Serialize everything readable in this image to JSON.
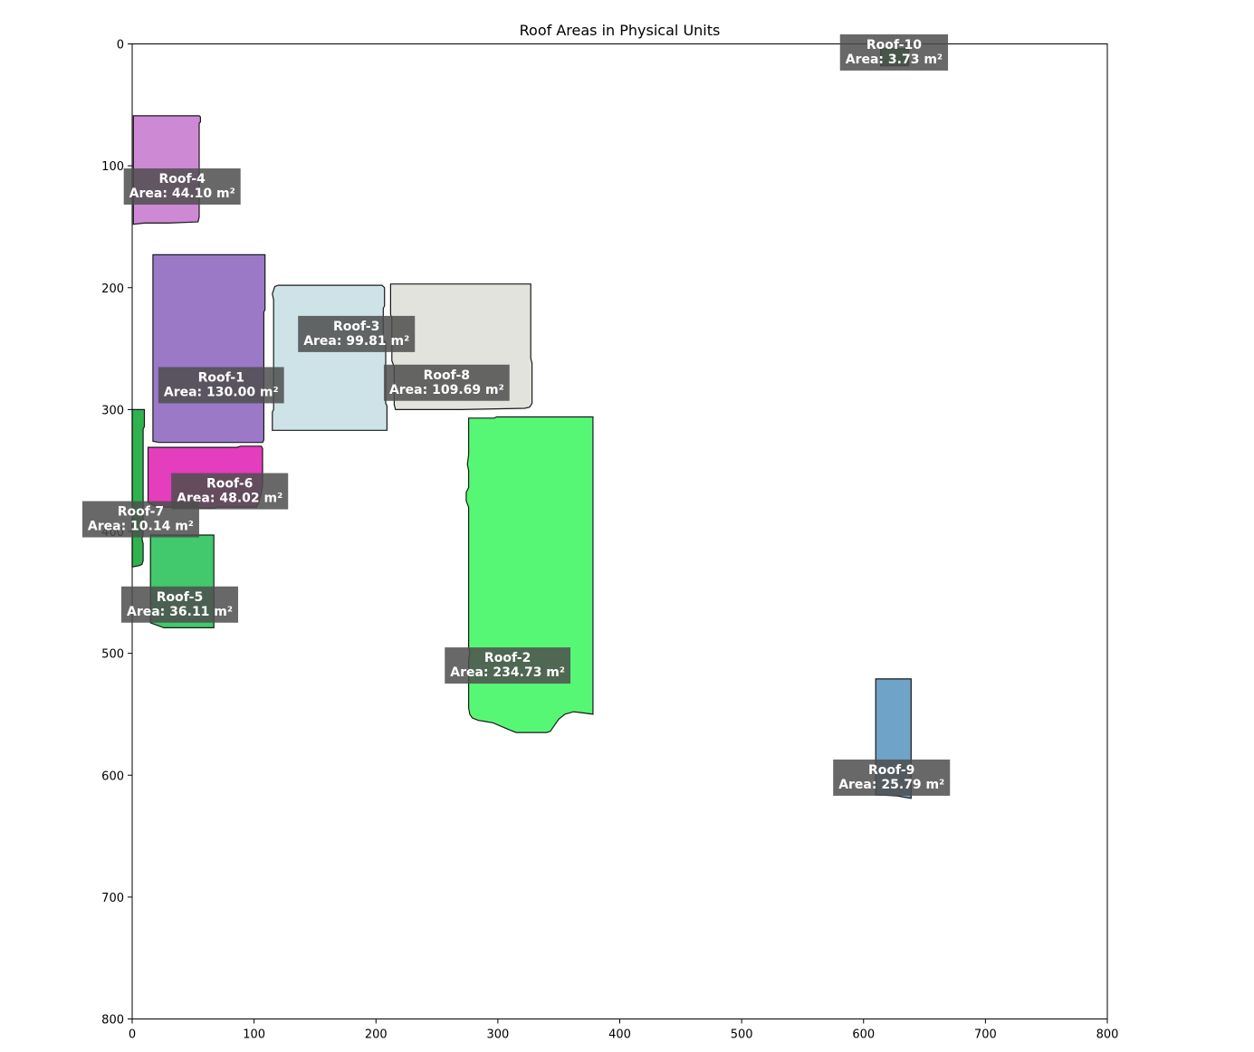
{
  "chart_data": {
    "type": "scatter",
    "title": "Roof Areas in Physical Units",
    "xlabel": "",
    "ylabel": "",
    "xlim": [
      0,
      800
    ],
    "ylim": [
      800,
      0
    ],
    "y_inverted": true,
    "grid": false,
    "x_ticks": [
      0,
      100,
      200,
      300,
      400,
      500,
      600,
      700,
      800
    ],
    "y_ticks": [
      0,
      100,
      200,
      300,
      400,
      500,
      600,
      700,
      800
    ],
    "label_box_color": "#4d4d4d",
    "roofs": [
      {
        "name": "Roof-1",
        "area_text": "Area: 130.00 m²",
        "color": "#9B79C7",
        "label_at": [
          73,
          280
        ],
        "polygon": [
          [
            17,
            173
          ],
          [
            109,
            173
          ],
          [
            109,
            218
          ],
          [
            108,
            220
          ],
          [
            108,
            325
          ],
          [
            107,
            327
          ],
          [
            22,
            327
          ],
          [
            17,
            326
          ]
        ]
      },
      {
        "name": "Roof-2",
        "area_text": "Area: 234.73 m²",
        "color": "#57F776",
        "label_at": [
          308,
          510
        ],
        "polygon": [
          [
            276,
            307
          ],
          [
            297,
            307
          ],
          [
            299,
            306
          ],
          [
            378,
            306
          ],
          [
            378,
            550
          ],
          [
            371,
            549
          ],
          [
            362,
            548
          ],
          [
            355,
            550
          ],
          [
            350,
            554
          ],
          [
            343,
            564
          ],
          [
            340,
            565
          ],
          [
            315,
            565
          ],
          [
            310,
            563
          ],
          [
            303,
            560
          ],
          [
            296,
            557
          ],
          [
            290,
            556
          ],
          [
            284,
            555
          ],
          [
            279,
            553
          ],
          [
            277,
            550
          ],
          [
            276,
            545
          ],
          [
            276,
            505
          ],
          [
            277,
            500
          ],
          [
            276,
            495
          ],
          [
            276,
            380
          ],
          [
            274,
            375
          ],
          [
            274,
            368
          ],
          [
            276,
            364
          ],
          [
            276,
            350
          ],
          [
            275,
            345
          ],
          [
            276,
            337
          ]
        ]
      },
      {
        "name": "Roof-3",
        "area_text": "Area: 99.81 m²",
        "color": "#CEE3E8",
        "label_at": [
          184,
          238
        ],
        "polygon": [
          [
            117,
            199
          ],
          [
            120,
            198
          ],
          [
            205,
            198
          ],
          [
            207,
            200
          ],
          [
            207,
            215
          ],
          [
            206,
            217
          ],
          [
            206,
            243
          ],
          [
            208,
            245
          ],
          [
            208,
            295
          ],
          [
            209,
            297
          ],
          [
            209,
            317
          ],
          [
            115,
            317
          ],
          [
            115,
            302
          ],
          [
            116,
            300
          ],
          [
            116,
            210
          ],
          [
            115,
            205
          ]
        ]
      },
      {
        "name": "Roof-4",
        "area_text": "Area: 44.10 m²",
        "color": "#CD89D4",
        "label_at": [
          41,
          117
        ],
        "polygon": [
          [
            1,
            59
          ],
          [
            55,
            59
          ],
          [
            56,
            60
          ],
          [
            56,
            64
          ],
          [
            55,
            65
          ],
          [
            55,
            142
          ],
          [
            54,
            146
          ],
          [
            30,
            147
          ],
          [
            10,
            147
          ],
          [
            1,
            148
          ]
        ]
      },
      {
        "name": "Roof-5",
        "area_text": "Area: 36.11 m²",
        "color": "#42C86D",
        "label_at": [
          39,
          460
        ],
        "polygon": [
          [
            15,
            403
          ],
          [
            67,
            403
          ],
          [
            67,
            479
          ],
          [
            26,
            479
          ],
          [
            15,
            475
          ]
        ]
      },
      {
        "name": "Roof-6",
        "area_text": "Area: 48.02 m²",
        "color": "#E43DBD",
        "label_at": [
          80,
          367
        ],
        "polygon": [
          [
            13,
            331
          ],
          [
            86,
            331
          ],
          [
            89,
            330
          ],
          [
            106,
            330
          ],
          [
            107,
            332
          ],
          [
            107,
            362
          ],
          [
            106,
            368
          ],
          [
            104,
            376
          ],
          [
            102,
            380
          ],
          [
            70,
            380
          ],
          [
            67,
            381
          ],
          [
            57,
            381
          ],
          [
            52,
            380
          ],
          [
            20,
            380
          ],
          [
            13,
            376
          ]
        ]
      },
      {
        "name": "Roof-7",
        "area_text": "Area: 10.14 m²",
        "color": "#2FB24F",
        "label_at": [
          7,
          390
        ],
        "polygon": [
          [
            0,
            300
          ],
          [
            10,
            300
          ],
          [
            10,
            314
          ],
          [
            9,
            316
          ],
          [
            9,
            403
          ],
          [
            8,
            406
          ],
          [
            9,
            410
          ],
          [
            9,
            424
          ],
          [
            8,
            427
          ],
          [
            6,
            428
          ],
          [
            1,
            429
          ],
          [
            0,
            429
          ]
        ]
      },
      {
        "name": "Roof-8",
        "area_text": "Area: 109.69 m²",
        "color": "#E3E3DD",
        "label_at": [
          258,
          278
        ],
        "polygon": [
          [
            212,
            197
          ],
          [
            327,
            197
          ],
          [
            327,
            258
          ],
          [
            328,
            262
          ],
          [
            328,
            295
          ],
          [
            326,
            298
          ],
          [
            322,
            299
          ],
          [
            270,
            300
          ],
          [
            216,
            300
          ],
          [
            215,
            296
          ],
          [
            215,
            265
          ],
          [
            213,
            260
          ],
          [
            213,
            225
          ],
          [
            212,
            222
          ]
        ]
      },
      {
        "name": "Roof-9",
        "area_text": "Area: 25.79 m²",
        "color": "#6FA3C7",
        "label_at": [
          623,
          602
        ],
        "polygon": [
          [
            610,
            521
          ],
          [
            639,
            521
          ],
          [
            639,
            619
          ],
          [
            633,
            618
          ],
          [
            628,
            617
          ],
          [
            610,
            616
          ]
        ]
      },
      {
        "name": "Roof-10",
        "area_text": "Area: 3.73 m²",
        "color": "#2A7D2E",
        "label_at": [
          625,
          7
        ],
        "polygon": [
          [
            614,
            4
          ],
          [
            637,
            4
          ],
          [
            637,
            18
          ],
          [
            614,
            18
          ]
        ]
      }
    ]
  }
}
